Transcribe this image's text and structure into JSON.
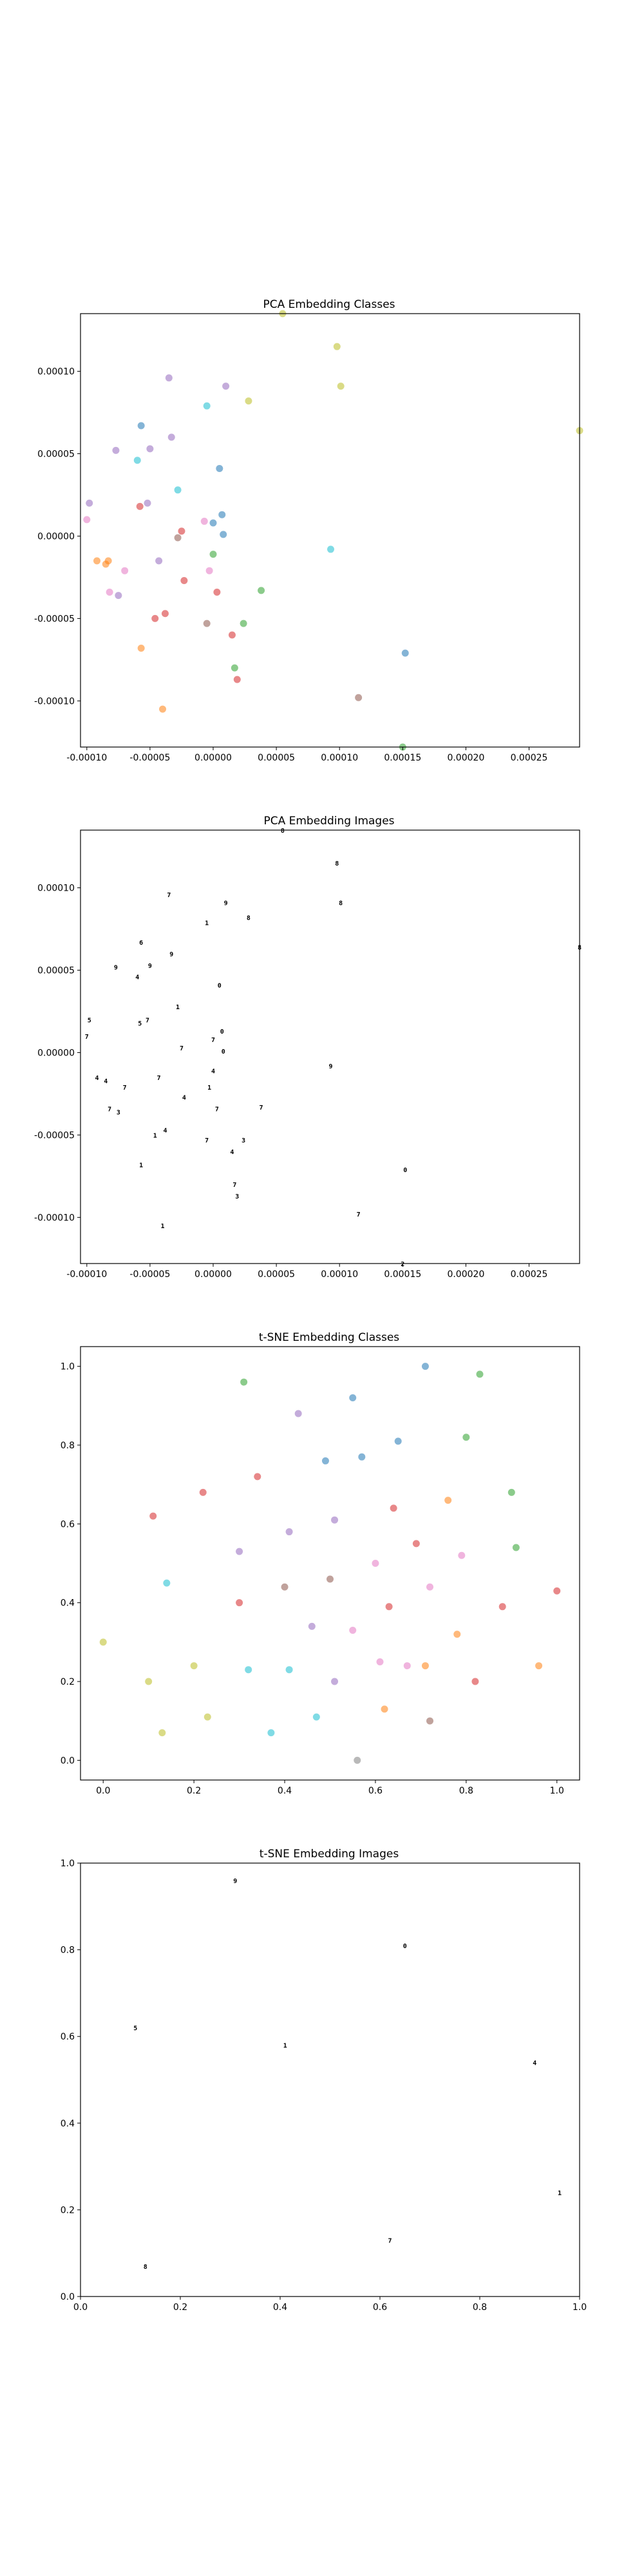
{
  "chart_data": [
    {
      "type": "scatter",
      "title": "PCA Embedding Classes",
      "xlabel": "",
      "ylabel": "",
      "xlim": [
        -0.000105,
        0.00029
      ],
      "ylim": [
        -0.000128,
        0.000135
      ],
      "xticks": [
        "-0.00010",
        "-0.00005",
        "0.00000",
        "0.00005",
        "0.00010",
        "0.00015",
        "0.00020",
        "0.00025"
      ],
      "xtick_values": [
        -0.0001,
        -5e-05,
        0,
        5e-05,
        0.0001,
        0.00015,
        0.0002,
        0.00025
      ],
      "yticks": [
        "-0.00010",
        "-0.00005",
        "0.00000",
        "0.00005",
        "0.00010"
      ],
      "ytick_values": [
        -0.0001,
        -5e-05,
        0,
        5e-05,
        0.0001
      ],
      "marker": "dot",
      "points": [
        [
          -0.0001,
          1e-05,
          "#e377c2"
        ],
        [
          -9.8e-05,
          2e-05,
          "#9467bd"
        ],
        [
          -9.2e-05,
          -1.5e-05,
          "#ff7f0e"
        ],
        [
          -8.5e-05,
          -1.7e-05,
          "#ff7f0e"
        ],
        [
          -8.3e-05,
          -1.5e-05,
          "#ff7f0e"
        ],
        [
          -8.2e-05,
          -3.4e-05,
          "#e377c2"
        ],
        [
          -7.7e-05,
          5.2e-05,
          "#9467bd"
        ],
        [
          -7.5e-05,
          -3.6e-05,
          "#9467bd"
        ],
        [
          -7e-05,
          -2.1e-05,
          "#e377c2"
        ],
        [
          -6e-05,
          4.6e-05,
          "#17becf"
        ],
        [
          -5.8e-05,
          1.8e-05,
          "#d62728"
        ],
        [
          -5.7e-05,
          6.7e-05,
          "#1f77b4"
        ],
        [
          -5.7e-05,
          -6.8e-05,
          "#ff7f0e"
        ],
        [
          -5.2e-05,
          2e-05,
          "#9467bd"
        ],
        [
          -5e-05,
          5.3e-05,
          "#9467bd"
        ],
        [
          -4.6e-05,
          -5e-05,
          "#d62728"
        ],
        [
          -4.3e-05,
          -1.5e-05,
          "#9467bd"
        ],
        [
          -4e-05,
          -0.000105,
          "#ff7f0e"
        ],
        [
          -3.8e-05,
          -4.7e-05,
          "#d62728"
        ],
        [
          -3.5e-05,
          9.6e-05,
          "#9467bd"
        ],
        [
          -3.3e-05,
          6e-05,
          "#9467bd"
        ],
        [
          -2.8e-05,
          2.8e-05,
          "#17becf"
        ],
        [
          -2.8e-05,
          -1e-06,
          "#8c564b"
        ],
        [
          -2.5e-05,
          3e-06,
          "#d62728"
        ],
        [
          -2.3e-05,
          -2.7e-05,
          "#d62728"
        ],
        [
          -5e-06,
          7.9e-05,
          "#17becf"
        ],
        [
          -5e-06,
          -5.3e-05,
          "#8c564b"
        ],
        [
          -7e-06,
          9e-06,
          "#e377c2"
        ],
        [
          -3e-06,
          -2.1e-05,
          "#e377c2"
        ],
        [
          0.0,
          8e-06,
          "#1f77b4"
        ],
        [
          0.0,
          -1.1e-05,
          "#2ca02c"
        ],
        [
          3e-06,
          -3.4e-05,
          "#d62728"
        ],
        [
          5e-06,
          4.1e-05,
          "#1f77b4"
        ],
        [
          7e-06,
          1.3e-05,
          "#1f77b4"
        ],
        [
          8e-06,
          1e-06,
          "#1f77b4"
        ],
        [
          1e-05,
          9.1e-05,
          "#9467bd"
        ],
        [
          1.5e-05,
          -6e-05,
          "#d62728"
        ],
        [
          1.7e-05,
          -8e-05,
          "#2ca02c"
        ],
        [
          1.9e-05,
          -8.7e-05,
          "#d62728"
        ],
        [
          2.4e-05,
          -5.3e-05,
          "#2ca02c"
        ],
        [
          2.8e-05,
          8.2e-05,
          "#bcbd22"
        ],
        [
          3.8e-05,
          -3.3e-05,
          "#2ca02c"
        ],
        [
          5.5e-05,
          0.000135,
          "#bcbd22"
        ],
        [
          9.3e-05,
          -8e-06,
          "#17becf"
        ],
        [
          9.8e-05,
          0.000115,
          "#bcbd22"
        ],
        [
          0.000101,
          9.1e-05,
          "#bcbd22"
        ],
        [
          0.000115,
          -9.8e-05,
          "#8c564b"
        ],
        [
          0.00015,
          -0.000128,
          "#2ca02c"
        ],
        [
          0.000152,
          -7.1e-05,
          "#1f77b4"
        ],
        [
          0.00029,
          6.4e-05,
          "#bcbd22"
        ]
      ]
    },
    {
      "type": "scatter",
      "title": "PCA Embedding Images",
      "xlabel": "",
      "ylabel": "",
      "xlim": [
        -0.000105,
        0.00029
      ],
      "ylim": [
        -0.000128,
        0.000135
      ],
      "xticks": [
        "-0.00010",
        "-0.00005",
        "0.00000",
        "0.00005",
        "0.00010",
        "0.00015",
        "0.00020",
        "0.00025"
      ],
      "xtick_values": [
        -0.0001,
        -5e-05,
        0,
        5e-05,
        0.0001,
        0.00015,
        0.0002,
        0.00025
      ],
      "yticks": [
        "-0.00010",
        "-0.00005",
        "0.00000",
        "0.00005",
        "0.00010"
      ],
      "ytick_values": [
        -0.0001,
        -5e-05,
        0,
        5e-05,
        0.0001
      ],
      "marker": "image",
      "points": [
        [
          -0.0001,
          1e-05,
          "7"
        ],
        [
          -9.8e-05,
          2e-05,
          "5"
        ],
        [
          -9.2e-05,
          -1.5e-05,
          "4"
        ],
        [
          -8.5e-05,
          -1.7e-05,
          "4"
        ],
        [
          -8.2e-05,
          -3.4e-05,
          "7"
        ],
        [
          -7.7e-05,
          5.2e-05,
          "9"
        ],
        [
          -7.5e-05,
          -3.6e-05,
          "3"
        ],
        [
          -7e-05,
          -2.1e-05,
          "7"
        ],
        [
          -6e-05,
          4.6e-05,
          "4"
        ],
        [
          -5.8e-05,
          1.8e-05,
          "5"
        ],
        [
          -5.7e-05,
          6.7e-05,
          "6"
        ],
        [
          -5.7e-05,
          -6.8e-05,
          "1"
        ],
        [
          -5.2e-05,
          2e-05,
          "7"
        ],
        [
          -5e-05,
          5.3e-05,
          "9"
        ],
        [
          -4.6e-05,
          -5e-05,
          "1"
        ],
        [
          -4.3e-05,
          -1.5e-05,
          "7"
        ],
        [
          -4e-05,
          -0.000105,
          "1"
        ],
        [
          -3.8e-05,
          -4.7e-05,
          "4"
        ],
        [
          -3.5e-05,
          9.6e-05,
          "7"
        ],
        [
          -3.3e-05,
          6e-05,
          "9"
        ],
        [
          -2.8e-05,
          2.8e-05,
          "1"
        ],
        [
          -2.5e-05,
          3e-06,
          "7"
        ],
        [
          -2.3e-05,
          -2.7e-05,
          "4"
        ],
        [
          -5e-06,
          7.9e-05,
          "1"
        ],
        [
          -5e-06,
          -5.3e-05,
          "7"
        ],
        [
          -3e-06,
          -2.1e-05,
          "1"
        ],
        [
          0.0,
          8e-06,
          "7"
        ],
        [
          0.0,
          -1.1e-05,
          "4"
        ],
        [
          3e-06,
          -3.4e-05,
          "7"
        ],
        [
          5e-06,
          4.1e-05,
          "0"
        ],
        [
          7e-06,
          1.3e-05,
          "0"
        ],
        [
          8e-06,
          1e-06,
          "0"
        ],
        [
          1e-05,
          9.1e-05,
          "9"
        ],
        [
          1.5e-05,
          -6e-05,
          "4"
        ],
        [
          1.7e-05,
          -8e-05,
          "7"
        ],
        [
          1.9e-05,
          -8.7e-05,
          "3"
        ],
        [
          2.4e-05,
          -5.3e-05,
          "3"
        ],
        [
          2.8e-05,
          8.2e-05,
          "8"
        ],
        [
          3.8e-05,
          -3.3e-05,
          "7"
        ],
        [
          5.5e-05,
          0.000135,
          "8"
        ],
        [
          9.3e-05,
          -8e-06,
          "9"
        ],
        [
          9.8e-05,
          0.000115,
          "8"
        ],
        [
          0.000101,
          9.1e-05,
          "8"
        ],
        [
          0.000115,
          -9.8e-05,
          "7"
        ],
        [
          0.00015,
          -0.000128,
          "2"
        ],
        [
          0.000152,
          -7.1e-05,
          "0"
        ],
        [
          0.00029,
          6.4e-05,
          "8"
        ]
      ]
    },
    {
      "type": "scatter",
      "title": "t-SNE Embedding Classes",
      "xlabel": "",
      "ylabel": "",
      "xlim": [
        -0.05,
        1.05
      ],
      "ylim": [
        -0.05,
        1.05
      ],
      "xticks": [
        "0.0",
        "0.2",
        "0.4",
        "0.6",
        "0.8",
        "1.0"
      ],
      "xtick_values": [
        0,
        0.2,
        0.4,
        0.6,
        0.8,
        1.0
      ],
      "yticks": [
        "0.0",
        "0.2",
        "0.4",
        "0.6",
        "0.8",
        "1.0"
      ],
      "ytick_values": [
        0,
        0.2,
        0.4,
        0.6,
        0.8,
        1.0
      ],
      "marker": "dot",
      "points": [
        [
          0.0,
          0.3,
          "#bcbd22"
        ],
        [
          0.1,
          0.2,
          "#bcbd22"
        ],
        [
          0.11,
          0.62,
          "#d62728"
        ],
        [
          0.13,
          0.07,
          "#bcbd22"
        ],
        [
          0.14,
          0.45,
          "#17becf"
        ],
        [
          0.2,
          0.24,
          "#bcbd22"
        ],
        [
          0.22,
          0.68,
          "#d62728"
        ],
        [
          0.23,
          0.11,
          "#bcbd22"
        ],
        [
          0.3,
          0.4,
          "#d62728"
        ],
        [
          0.3,
          0.53,
          "#9467bd"
        ],
        [
          0.31,
          0.96,
          "#2ca02c"
        ],
        [
          0.32,
          0.23,
          "#17becf"
        ],
        [
          0.34,
          0.72,
          "#d62728"
        ],
        [
          0.37,
          0.07,
          "#17becf"
        ],
        [
          0.4,
          0.44,
          "#8c564b"
        ],
        [
          0.41,
          0.23,
          "#17becf"
        ],
        [
          0.41,
          0.58,
          "#9467bd"
        ],
        [
          0.43,
          0.88,
          "#9467bd"
        ],
        [
          0.46,
          0.34,
          "#9467bd"
        ],
        [
          0.47,
          0.11,
          "#17becf"
        ],
        [
          0.49,
          0.76,
          "#1f77b4"
        ],
        [
          0.5,
          0.46,
          "#8c564b"
        ],
        [
          0.51,
          0.2,
          "#9467bd"
        ],
        [
          0.51,
          0.61,
          "#9467bd"
        ],
        [
          0.55,
          0.92,
          "#1f77b4"
        ],
        [
          0.55,
          0.33,
          "#e377c2"
        ],
        [
          0.56,
          0.0,
          "#7f7f7f"
        ],
        [
          0.57,
          0.77,
          "#1f77b4"
        ],
        [
          0.6,
          0.5,
          "#e377c2"
        ],
        [
          0.61,
          0.25,
          "#e377c2"
        ],
        [
          0.62,
          0.13,
          "#ff7f0e"
        ],
        [
          0.63,
          0.39,
          "#d62728"
        ],
        [
          0.64,
          0.64,
          "#d62728"
        ],
        [
          0.65,
          0.81,
          "#1f77b4"
        ],
        [
          0.67,
          0.24,
          "#e377c2"
        ],
        [
          0.69,
          0.55,
          "#d62728"
        ],
        [
          0.71,
          1.0,
          "#1f77b4"
        ],
        [
          0.71,
          0.24,
          "#ff7f0e"
        ],
        [
          0.72,
          0.44,
          "#e377c2"
        ],
        [
          0.72,
          0.1,
          "#8c564b"
        ],
        [
          0.76,
          0.66,
          "#ff7f0e"
        ],
        [
          0.78,
          0.32,
          "#ff7f0e"
        ],
        [
          0.79,
          0.52,
          "#e377c2"
        ],
        [
          0.8,
          0.82,
          "#2ca02c"
        ],
        [
          0.82,
          0.2,
          "#d62728"
        ],
        [
          0.83,
          0.98,
          "#2ca02c"
        ],
        [
          0.88,
          0.39,
          "#d62728"
        ],
        [
          0.9,
          0.68,
          "#2ca02c"
        ],
        [
          0.91,
          0.54,
          "#2ca02c"
        ],
        [
          0.96,
          0.24,
          "#ff7f0e"
        ],
        [
          1.0,
          0.43,
          "#d62728"
        ]
      ]
    },
    {
      "type": "scatter",
      "title": "t-SNE Embedding Images",
      "xlabel": "",
      "ylabel": "",
      "xlim": [
        0.0,
        1.0
      ],
      "ylim": [
        0.0,
        1.0
      ],
      "xticks": [
        "0.0",
        "0.2",
        "0.4",
        "0.6",
        "0.8",
        "1.0"
      ],
      "xtick_values": [
        0,
        0.2,
        0.4,
        0.6,
        0.8,
        1.0
      ],
      "yticks": [
        "0.0",
        "0.2",
        "0.4",
        "0.6",
        "0.8",
        "1.0"
      ],
      "ytick_values": [
        0,
        0.2,
        0.4,
        0.6,
        0.8,
        1.0
      ],
      "marker": "image",
      "points": [
        [
          0.11,
          0.62,
          "5"
        ],
        [
          0.13,
          0.07,
          "8"
        ],
        [
          0.31,
          0.96,
          "9"
        ],
        [
          0.41,
          0.58,
          "1"
        ],
        [
          0.62,
          0.13,
          "7"
        ],
        [
          0.65,
          0.81,
          "0"
        ],
        [
          0.91,
          0.54,
          "4"
        ],
        [
          0.96,
          0.24,
          "1"
        ]
      ]
    }
  ]
}
